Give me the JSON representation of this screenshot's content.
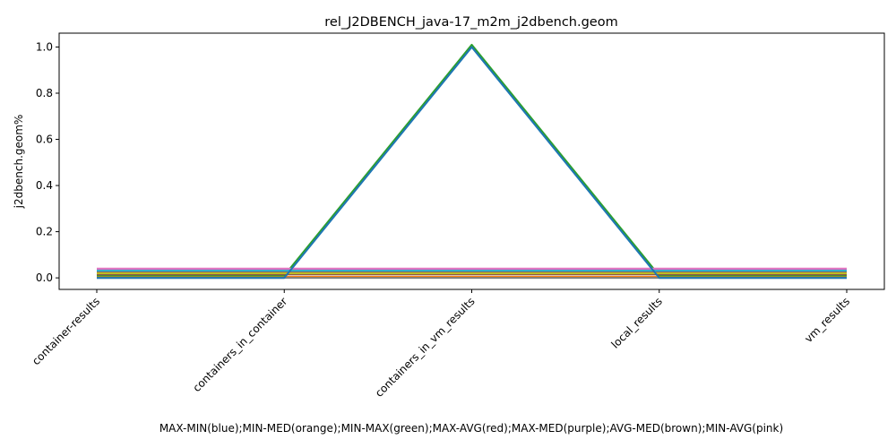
{
  "chart_data": {
    "type": "line",
    "title": "rel_J2DBENCH_java-17_m2m_j2dbench.geom",
    "xlabel": "MAX-MIN(blue);MIN-MED(orange);MIN-MAX(green);MAX-AVG(red);MAX-MED(purple);AVG-MED(brown);MIN-AVG(pink)",
    "ylabel": "j2dbench.geom%",
    "categories": [
      "container-results",
      "containers_in_container",
      "containers_in_vm_results",
      "local_results",
      "vm_results"
    ],
    "ylim": [
      -0.05,
      1.06
    ],
    "yticks": [
      "0.0",
      "0.2",
      "0.4",
      "0.6",
      "0.8",
      "1.0"
    ],
    "ytick_values": [
      0.0,
      0.2,
      0.4,
      0.6,
      0.8,
      1.0
    ],
    "grid": false,
    "series": [
      {
        "values": [
          0.0,
          0.0,
          1.0,
          0.0,
          0.0
        ],
        "color": "#1f77b4"
      },
      {
        "values": [
          0.005,
          0.005,
          0.005,
          0.005,
          0.005
        ],
        "color": "#ff7f0e"
      },
      {
        "values": [
          0.01,
          0.01,
          1.01,
          0.01,
          0.01
        ],
        "color": "#2ca02c"
      },
      {
        "values": [
          0.025,
          0.025,
          0.025,
          0.025,
          0.025
        ],
        "color": "#d62728"
      },
      {
        "values": [
          0.035,
          0.035,
          0.035,
          0.035,
          0.035
        ],
        "color": "#9467bd"
      },
      {
        "values": [
          0.015,
          0.015,
          0.015,
          0.015,
          0.015
        ],
        "color": "#8c564b"
      },
      {
        "values": [
          0.04,
          0.04,
          0.04,
          0.04,
          0.04
        ],
        "color": "#e377c2"
      },
      {
        "values": [
          0.0,
          0.0,
          0.0,
          0.0,
          0.0
        ],
        "color": "#7f7f7f"
      },
      {
        "values": [
          0.02,
          0.02,
          0.02,
          0.02,
          0.02
        ],
        "color": "#bcbd22"
      },
      {
        "values": [
          0.03,
          0.03,
          0.03,
          0.03,
          0.03
        ],
        "color": "#17becf"
      },
      {
        "values": [
          0.0,
          0.0,
          1.0,
          0.0,
          0.0
        ],
        "color": "#1f77b4"
      }
    ]
  }
}
